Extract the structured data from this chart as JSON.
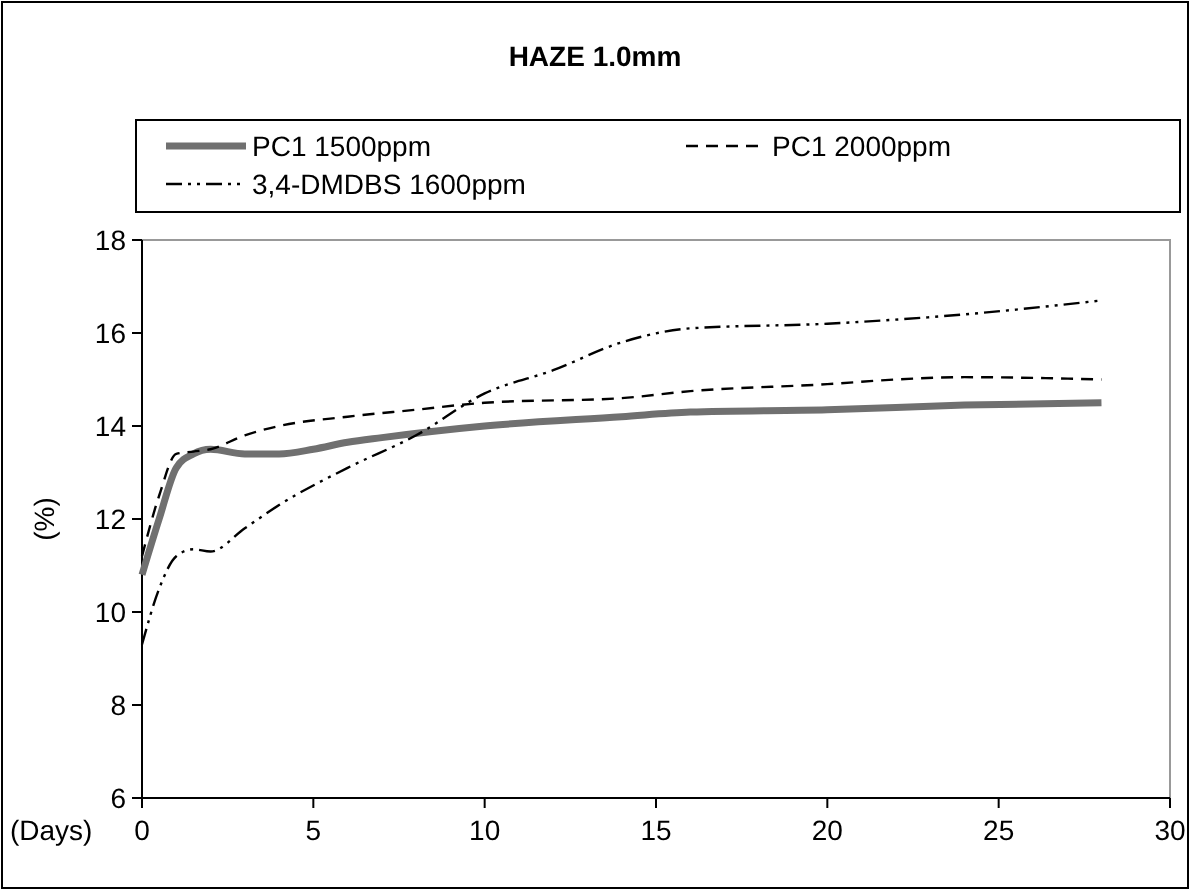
{
  "chart_data": {
    "type": "line",
    "title": "HAZE 1.0mm",
    "xlabel": "(Days)",
    "ylabel": "(%)",
    "xlim": [
      0,
      30
    ],
    "xticks": [
      0,
      5,
      10,
      15,
      20,
      25,
      30
    ],
    "ylim": [
      6,
      18
    ],
    "yticks": [
      6,
      8,
      10,
      12,
      14,
      16,
      18
    ],
    "grid": false,
    "legend": "top",
    "series": [
      {
        "name": "PC1 1500ppm",
        "color": "#707070",
        "line_style": "solid",
        "x": [
          0,
          0.5,
          1,
          1.5,
          2,
          3,
          4,
          5,
          6,
          7,
          10,
          14,
          16,
          20,
          24,
          28
        ],
        "values": [
          10.8,
          12,
          13.1,
          13.4,
          13.5,
          13.4,
          13.4,
          13.5,
          13.65,
          13.75,
          14.0,
          14.2,
          14.3,
          14.35,
          14.45,
          14.5
        ]
      },
      {
        "name": "PC1 2000ppm",
        "color": "#000000",
        "line_style": "dashed",
        "x": [
          0,
          0.5,
          1,
          1.5,
          2,
          3,
          4,
          6,
          8,
          10,
          14,
          16,
          20,
          22,
          24,
          28
        ],
        "values": [
          11.2,
          12.5,
          13.4,
          13.45,
          13.5,
          13.8,
          14.0,
          14.2,
          14.35,
          14.5,
          14.6,
          14.75,
          14.9,
          15.0,
          15.05,
          15.0
        ]
      },
      {
        "name": "3,4-DMDBS 1600ppm",
        "color": "#000000",
        "line_style": "dashdot",
        "x": [
          0,
          0.5,
          1,
          1.5,
          2,
          3,
          4,
          6,
          8,
          10,
          12,
          14,
          16,
          20,
          24,
          28
        ],
        "values": [
          9.3,
          10.5,
          11.2,
          11.35,
          11.3,
          11.8,
          12.3,
          13.1,
          13.8,
          14.7,
          15.2,
          15.8,
          16.1,
          16.2,
          16.4,
          16.7
        ]
      }
    ]
  }
}
